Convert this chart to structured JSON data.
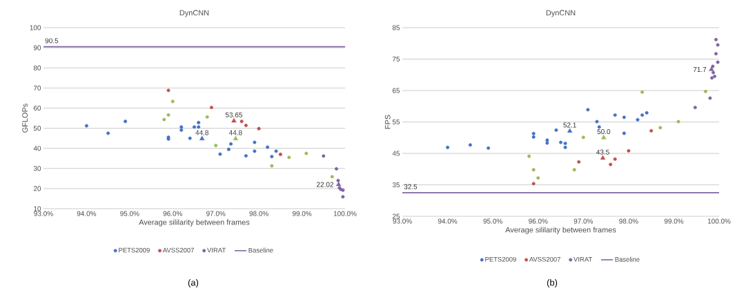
{
  "chart_data": [
    {
      "type": "scatter",
      "title": "DynCNN",
      "xlabel": "Average sililarity between frames",
      "ylabel": "GFLOPs",
      "xlim": [
        93,
        100
      ],
      "xticks": [
        {
          "value": 93,
          "label": "93.0%"
        },
        {
          "value": 94,
          "label": "94.0%"
        },
        {
          "value": 95,
          "label": "95.0%"
        },
        {
          "value": 96,
          "label": "96.0%"
        },
        {
          "value": 97,
          "label": "97.0%"
        },
        {
          "value": 98,
          "label": "98.0%"
        },
        {
          "value": 99,
          "label": "99.0%"
        },
        {
          "value": 100,
          "label": "100.0%"
        }
      ],
      "ylim": [
        10,
        100
      ],
      "yticks": [
        10,
        20,
        30,
        40,
        50,
        60,
        70,
        80,
        90,
        100
      ],
      "grid": "y",
      "legend": "bottom",
      "marker": "circle",
      "series": [
        {
          "name": "PETS2009",
          "color": "#4472c4",
          "x": [
            94.0,
            94.5,
            94.9,
            95.9,
            95.9,
            96.2,
            96.2,
            96.4,
            96.5,
            96.6,
            96.6,
            97.1,
            97.3,
            97.35,
            97.7,
            97.9,
            97.9,
            98.2,
            98.3,
            98.4
          ],
          "values": [
            51.2,
            47.5,
            53.4,
            45.5,
            44.6,
            50.6,
            49.1,
            45.0,
            50.6,
            50.6,
            52.8,
            37.1,
            39.5,
            42.2,
            36.3,
            43.0,
            38.6,
            40.6,
            35.9,
            38.6
          ]
        },
        {
          "name": "AVSS2007",
          "color": "#c0504d",
          "x": [
            95.9,
            96.9,
            97.6,
            97.7,
            98.0,
            98.5
          ],
          "values": [
            68.8,
            60.3,
            53.4,
            51.4,
            49.8,
            37.0
          ]
        },
        {
          "color": "#9bbb59",
          "x": [
            95.8,
            95.9,
            96.0,
            96.8,
            97.0,
            98.3,
            98.7,
            99.1,
            99.7
          ],
          "values": [
            54.3,
            56.6,
            63.3,
            55.6,
            41.4,
            31.3,
            35.5,
            37.5,
            25.9
          ]
        },
        {
          "name": "VIRAT",
          "color": "#8064a2",
          "x": [
            99.5,
            99.8,
            99.84,
            99.87,
            99.9,
            99.95,
            99.95
          ],
          "values": [
            36.2,
            29.8,
            24.0,
            20.4,
            19.6,
            19.2,
            15.9
          ]
        },
        {
          "name": "Baseline",
          "type": "line",
          "marker": "none",
          "color": "#8064a2",
          "x": [
            93,
            100
          ],
          "values": [
            90.5,
            90.5
          ]
        },
        {
          "color": "#4472c4",
          "marker": "triangle",
          "x": [
            96.68
          ],
          "values": [
            44.8
          ]
        },
        {
          "color": "#c0504d",
          "marker": "triangle",
          "x": [
            97.42
          ],
          "values": [
            53.65
          ]
        },
        {
          "color": "#9bbb59",
          "marker": "triangle",
          "x": [
            97.46
          ],
          "values": [
            44.8
          ]
        },
        {
          "color": "#8064a2",
          "marker": "triangle",
          "x": [
            99.85
          ],
          "values": [
            22.02
          ]
        }
      ],
      "annotations": [
        {
          "text": "90.5",
          "x": 93,
          "y": 90.5
        },
        {
          "text": "44.8",
          "x": 96.68,
          "y": 44.8
        },
        {
          "text": "53.65",
          "x": 97.42,
          "y": 53.65
        },
        {
          "text": "44.8",
          "x": 97.46,
          "y": 44.8
        },
        {
          "text": "22.02",
          "x": 99.85,
          "y": 22.02
        },
        "(a)"
      ]
    },
    {
      "type": "scatter",
      "title": "DynCNN",
      "xlabel": "Average sililarity between frames",
      "ylabel": "FPS",
      "xlim": [
        93,
        100
      ],
      "xticks": [
        {
          "value": 93,
          "label": "93.0%"
        },
        {
          "value": 94,
          "label": "94.0%"
        },
        {
          "value": 95,
          "label": "95.0%"
        },
        {
          "value": 96,
          "label": "96.0%"
        },
        {
          "value": 97,
          "label": "97.0%"
        },
        {
          "value": 98,
          "label": "98.0%"
        },
        {
          "value": 99,
          "label": "99.0%"
        },
        {
          "value": 100,
          "label": "100.0%"
        }
      ],
      "ylim": [
        25,
        85
      ],
      "yticks": [
        25,
        35,
        45,
        55,
        65,
        75,
        85
      ],
      "grid": "y",
      "legend": "bottom",
      "marker": "circle",
      "series": [
        {
          "name": "PETS2009",
          "color": "#4472c4",
          "x": [
            94.0,
            94.5,
            94.9,
            95.9,
            95.9,
            96.2,
            96.2,
            96.4,
            96.5,
            96.6,
            96.6,
            97.1,
            97.3,
            97.35,
            97.7,
            97.9,
            97.9,
            98.2,
            98.3,
            98.4
          ],
          "values": [
            46.9,
            47.7,
            46.7,
            51.3,
            50.2,
            49.2,
            48.3,
            52.4,
            48.5,
            48.2,
            46.9,
            58.9,
            55.1,
            53.4,
            57.2,
            56.5,
            51.4,
            55.7,
            57.2,
            57.9
          ]
        },
        {
          "name": "AVSS2007",
          "color": "#c0504d",
          "x": [
            95.9,
            96.9,
            97.6,
            97.7,
            98.0,
            98.5
          ],
          "values": [
            35.4,
            42.3,
            41.5,
            43.2,
            45.8,
            52.2
          ]
        },
        {
          "color": "#9bbb59",
          "x": [
            95.8,
            95.9,
            96.0,
            96.8,
            97.0,
            98.3,
            98.7,
            99.1,
            99.7
          ],
          "values": [
            44.1,
            39.8,
            37.2,
            39.8,
            50.1,
            64.5,
            53.2,
            55.1,
            64.7
          ]
        },
        {
          "name": "VIRAT",
          "color": "#8064a2",
          "x": [
            99.47,
            99.8,
            99.93,
            99.97,
            99.93,
            99.97,
            99.86,
            99.87,
            99.84,
            99.9
          ],
          "values": [
            59.6,
            62.6,
            81.2,
            79.5,
            76.7,
            74.0,
            72.7,
            70.7,
            69.0,
            69.5
          ]
        },
        {
          "name": "Baseline",
          "type": "line",
          "marker": "none",
          "color": "#8064a2",
          "x": [
            93,
            100
          ],
          "values": [
            32.5,
            32.5
          ]
        },
        {
          "color": "#4472c4",
          "marker": "triangle",
          "x": [
            96.7
          ],
          "values": [
            52.1
          ]
        },
        {
          "color": "#c0504d",
          "marker": "triangle",
          "x": [
            97.43
          ],
          "values": [
            43.5
          ]
        },
        {
          "color": "#9bbb59",
          "marker": "triangle",
          "x": [
            97.45
          ],
          "values": [
            50.0
          ]
        },
        {
          "color": "#8064a2",
          "marker": "triangle",
          "x": [
            99.83
          ],
          "values": [
            71.7
          ]
        }
      ],
      "annotations": [
        {
          "text": "32.5",
          "x": 93,
          "y": 32.5
        },
        {
          "text": "52.1",
          "x": 96.7,
          "y": 52.1
        },
        {
          "text": "50.0",
          "x": 97.45,
          "y": 50.0
        },
        {
          "text": "43.5",
          "x": 97.43,
          "y": 43.5
        },
        {
          "text": "71.7",
          "x": 99.83,
          "y": 71.7
        },
        "(b)"
      ]
    }
  ]
}
